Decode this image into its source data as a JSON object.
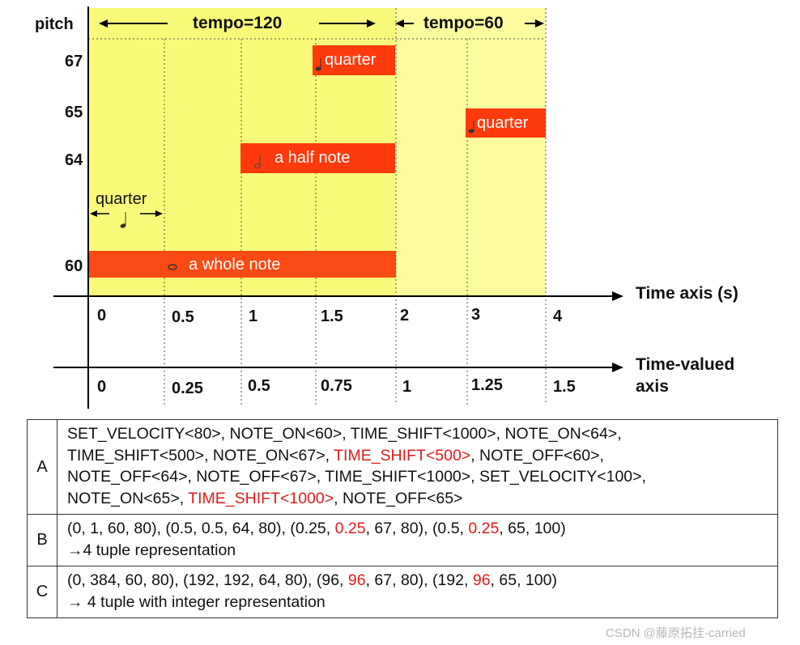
{
  "diagram": {
    "y_axis_label": "pitch",
    "pitch_labels": [
      "67",
      "65",
      "64",
      "60"
    ],
    "tempo_labels": [
      "tempo=120",
      "tempo=60"
    ],
    "quarter_label": "quarter",
    "time_axis_label": "Time axis (s)",
    "time_ticks": [
      "0",
      "0.5",
      "1",
      "1.5",
      "2",
      "3",
      "4"
    ],
    "time_valued_axis_label_line1": "Time-valued",
    "time_valued_axis_label_line2": "axis",
    "time_valued_ticks": [
      "0",
      "0.25",
      "0.5",
      "0.75",
      "1",
      "1.25",
      "1.5"
    ],
    "notes": [
      {
        "pitch": 67,
        "label": "quarter"
      },
      {
        "pitch": 65,
        "label": "quarter"
      },
      {
        "pitch": 64,
        "label": "a half note"
      },
      {
        "pitch": 60,
        "label": "a whole note"
      }
    ],
    "colors": {
      "region": "#fafa7a",
      "region_right": "#fcfc9e",
      "note_bar": "#ff3a0d",
      "note_bar_low": "#fb4a14"
    }
  },
  "table": {
    "rows": [
      {
        "key": "A",
        "lines": [
          [
            {
              "t": "SET_VELOCITY<80>, NOTE_ON<60>, TIME_SHIFT<1000>, NOTE_ON<64>,"
            }
          ],
          [
            {
              "t": "TIME_SHIFT<500>, NOTE_ON<67>, "
            },
            {
              "t": "TIME_SHIFT<500>",
              "red": true
            },
            {
              "t": ", NOTE_OFF<60>,"
            }
          ],
          [
            {
              "t": "NOTE_OFF<64>, NOTE_OFF<67>, TIME_SHIFT<1000>, SET_VELOCITY<100>,"
            }
          ],
          [
            {
              "t": "NOTE_ON<65>, "
            },
            {
              "t": "TIME_SHIFT<1000>",
              "red": true
            },
            {
              "t": ", NOTE_OFF<65>"
            }
          ]
        ]
      },
      {
        "key": "B",
        "lines": [
          [
            {
              "t": "(0, 1, 60, 80), (0.5, 0.5, 64, 80), (0.25, "
            },
            {
              "t": "0.25",
              "red": true
            },
            {
              "t": ", 67, 80), (0.5, "
            },
            {
              "t": "0.25",
              "red": true
            },
            {
              "t": ", 65, 100)"
            }
          ],
          [
            {
              "t": "→4 tuple representation"
            }
          ]
        ]
      },
      {
        "key": "C",
        "lines": [
          [
            {
              "t": "(0, 384, 60, 80), (192, 192, 64, 80), (96, "
            },
            {
              "t": "96",
              "red": true
            },
            {
              "t": ", 67, 80), (192, "
            },
            {
              "t": "96",
              "red": true
            },
            {
              "t": ", 65, 100)"
            }
          ],
          [
            {
              "t": "→ 4 tuple with integer representation"
            }
          ]
        ]
      }
    ]
  },
  "watermark": "CSDN @藤原拓挂-carried"
}
